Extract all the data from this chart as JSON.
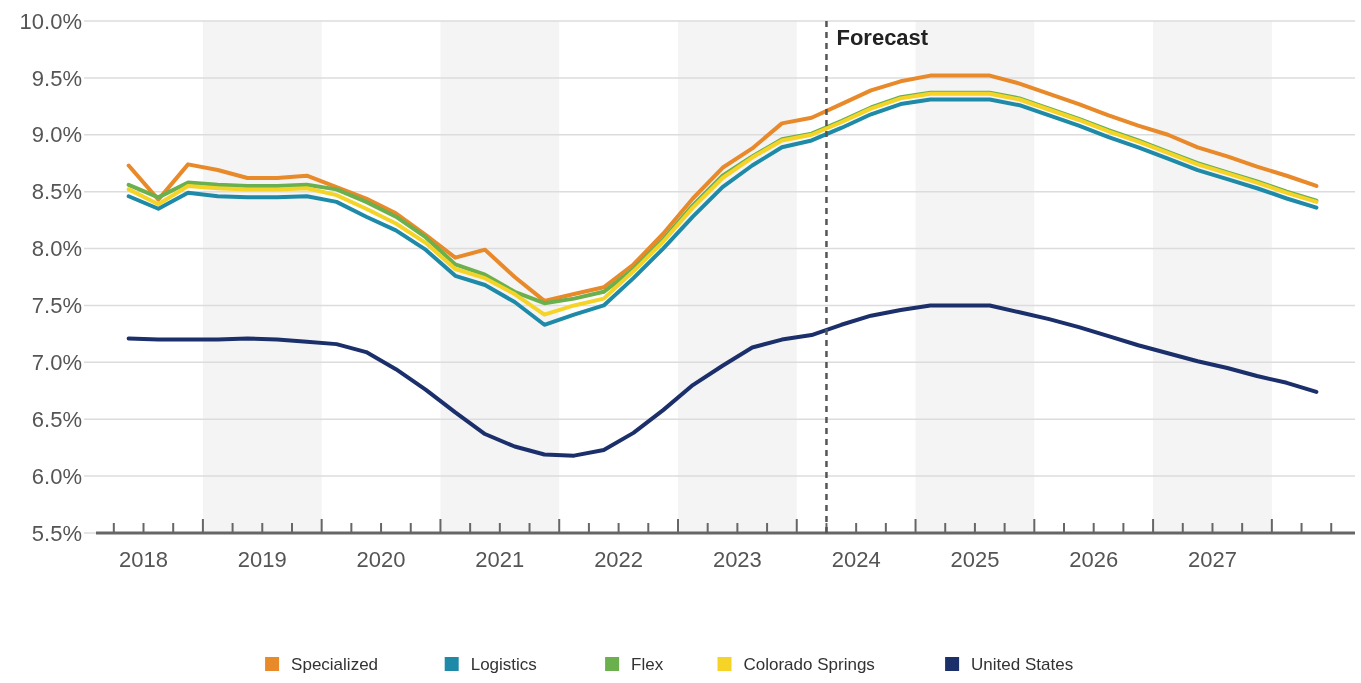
{
  "chart_data": {
    "type": "line",
    "x": [
      2018.375,
      2018.625,
      2018.875,
      2019.125,
      2019.375,
      2019.625,
      2019.875,
      2020.125,
      2020.375,
      2020.625,
      2020.875,
      2021.125,
      2021.375,
      2021.625,
      2021.875,
      2022.125,
      2022.375,
      2022.625,
      2022.875,
      2023.125,
      2023.375,
      2023.625,
      2023.875,
      2024.125,
      2024.375,
      2024.625,
      2024.875,
      2025.125,
      2025.375,
      2025.625,
      2025.875,
      2026.125,
      2026.375,
      2026.625,
      2026.875,
      2027.125,
      2027.375,
      2027.625,
      2027.875,
      2028.125,
      2028.375
    ],
    "series": [
      {
        "name": "Specialized",
        "color": "#e8892a",
        "values": [
          8.73,
          8.43,
          8.74,
          8.69,
          8.62,
          8.62,
          8.64,
          8.54,
          8.44,
          8.31,
          8.12,
          7.92,
          7.99,
          7.75,
          7.54,
          7.6,
          7.66,
          7.86,
          8.13,
          8.44,
          8.71,
          8.88,
          9.1,
          9.15,
          9.27,
          9.39,
          9.47,
          9.52,
          9.52,
          9.52,
          9.45,
          9.36,
          9.27,
          9.17,
          9.08,
          9.0,
          8.89,
          8.81,
          8.72,
          8.64,
          8.55
        ]
      },
      {
        "name": "Logistics",
        "color": "#1f8aa8",
        "values": [
          8.46,
          8.35,
          8.49,
          8.46,
          8.45,
          8.45,
          8.46,
          8.41,
          8.28,
          8.16,
          7.99,
          7.76,
          7.68,
          7.53,
          7.33,
          7.42,
          7.5,
          7.74,
          8.0,
          8.28,
          8.54,
          8.73,
          8.89,
          8.95,
          9.06,
          9.18,
          9.27,
          9.31,
          9.31,
          9.31,
          9.26,
          9.17,
          9.08,
          8.98,
          8.89,
          8.79,
          8.69,
          8.61,
          8.53,
          8.44,
          8.36
        ]
      },
      {
        "name": "Flex",
        "color": "#6ab04c",
        "values": [
          8.56,
          8.45,
          8.58,
          8.56,
          8.55,
          8.55,
          8.56,
          8.52,
          8.41,
          8.28,
          8.1,
          7.86,
          7.77,
          7.62,
          7.52,
          7.56,
          7.62,
          7.82,
          8.08,
          8.38,
          8.64,
          8.81,
          8.96,
          9.01,
          9.12,
          9.24,
          9.33,
          9.37,
          9.37,
          9.37,
          9.32,
          9.23,
          9.14,
          9.04,
          8.95,
          8.85,
          8.75,
          8.67,
          8.59,
          8.5,
          8.42
        ]
      },
      {
        "name": "Colorado Springs",
        "color": "#f5d327",
        "values": [
          8.52,
          8.39,
          8.55,
          8.53,
          8.52,
          8.52,
          8.53,
          8.47,
          8.35,
          8.22,
          8.05,
          7.82,
          7.74,
          7.6,
          7.42,
          7.5,
          7.56,
          7.8,
          8.06,
          8.36,
          8.62,
          8.8,
          8.95,
          9.0,
          9.11,
          9.23,
          9.32,
          9.36,
          9.36,
          9.36,
          9.31,
          9.22,
          9.13,
          9.03,
          8.94,
          8.84,
          8.74,
          8.66,
          8.58,
          8.49,
          8.41
        ]
      },
      {
        "name": "United States",
        "color": "#1b2f6b",
        "values": [
          7.21,
          7.2,
          7.2,
          7.2,
          7.21,
          7.2,
          7.18,
          7.16,
          7.09,
          6.94,
          6.76,
          6.56,
          6.37,
          6.26,
          6.19,
          6.18,
          6.23,
          6.38,
          6.58,
          6.8,
          6.97,
          7.13,
          7.2,
          7.24,
          7.33,
          7.41,
          7.46,
          7.5,
          7.5,
          7.5,
          7.44,
          7.38,
          7.31,
          7.23,
          7.15,
          7.08,
          7.01,
          6.95,
          6.88,
          6.82,
          6.74
        ]
      }
    ],
    "xlim": [
      2018.1,
      2028.7
    ],
    "xticks": [
      {
        "value": 2018.25,
        "label": null
      },
      {
        "value": 2018.5,
        "label": "2018"
      },
      {
        "value": 2018.75,
        "label": null
      },
      {
        "value": 2019,
        "label": null
      },
      {
        "value": 2019.25,
        "label": null
      },
      {
        "value": 2019.5,
        "label": "2019"
      },
      {
        "value": 2019.75,
        "label": null
      },
      {
        "value": 2020,
        "label": null
      },
      {
        "value": 2020.25,
        "label": null
      },
      {
        "value": 2020.5,
        "label": "2020"
      },
      {
        "value": 2020.75,
        "label": null
      },
      {
        "value": 2021,
        "label": null
      },
      {
        "value": 2021.25,
        "label": null
      },
      {
        "value": 2021.5,
        "label": "2021"
      },
      {
        "value": 2021.75,
        "label": null
      },
      {
        "value": 2022,
        "label": null
      },
      {
        "value": 2022.25,
        "label": null
      },
      {
        "value": 2022.5,
        "label": "2022"
      },
      {
        "value": 2022.75,
        "label": null
      },
      {
        "value": 2023,
        "label": null
      },
      {
        "value": 2023.25,
        "label": null
      },
      {
        "value": 2023.5,
        "label": "2023"
      },
      {
        "value": 2023.75,
        "label": null
      },
      {
        "value": 2024,
        "label": null
      },
      {
        "value": 2024.25,
        "label": null
      },
      {
        "value": 2024.5,
        "label": "2024"
      },
      {
        "value": 2024.75,
        "label": null
      },
      {
        "value": 2025,
        "label": null
      },
      {
        "value": 2025.25,
        "label": null
      },
      {
        "value": 2025.5,
        "label": "2025"
      },
      {
        "value": 2025.75,
        "label": null
      },
      {
        "value": 2026,
        "label": null
      },
      {
        "value": 2026.25,
        "label": null
      },
      {
        "value": 2026.5,
        "label": "2026"
      },
      {
        "value": 2026.75,
        "label": null
      },
      {
        "value": 2027,
        "label": null
      },
      {
        "value": 2027.25,
        "label": null
      },
      {
        "value": 2027.5,
        "label": "2027"
      },
      {
        "value": 2027.75,
        "label": null
      },
      {
        "value": 2028,
        "label": null
      },
      {
        "value": 2028.25,
        "label": null
      },
      {
        "value": 2028.5,
        "label": null
      }
    ],
    "ylim": [
      5.5,
      10
    ],
    "yticks": [
      {
        "value": 5.5,
        "label": "5.5%"
      },
      {
        "value": 6,
        "label": "6.0%"
      },
      {
        "value": 6.5,
        "label": "6.5%"
      },
      {
        "value": 7,
        "label": "7.0%"
      },
      {
        "value": 7.5,
        "label": "7.5%"
      },
      {
        "value": 8,
        "label": "8.0%"
      },
      {
        "value": 8.5,
        "label": "8.5%"
      },
      {
        "value": 9,
        "label": "9.0%"
      },
      {
        "value": 9.5,
        "label": "9.5%"
      },
      {
        "value": 10,
        "label": "10.0%"
      }
    ],
    "grid": "y",
    "legend": "bottom",
    "marker": "none",
    "line_style": "solid",
    "bands": [
      {
        "axis": "x",
        "from": 2019,
        "to": 2020,
        "color": "#f4f4f4"
      },
      {
        "axis": "x",
        "from": 2021,
        "to": 2022,
        "color": "#f4f4f4"
      },
      {
        "axis": "x",
        "from": 2023,
        "to": 2024,
        "color": "#f4f4f4"
      },
      {
        "axis": "x",
        "from": 2025,
        "to": 2026,
        "color": "#f4f4f4"
      },
      {
        "axis": "x",
        "from": 2027,
        "to": 2028,
        "color": "#f4f4f4"
      }
    ],
    "ref_lines": [
      {
        "axis": "x",
        "value": 2024.25,
        "label": "Forecast",
        "color": "#555555",
        "line_style": "dashed"
      }
    ]
  }
}
